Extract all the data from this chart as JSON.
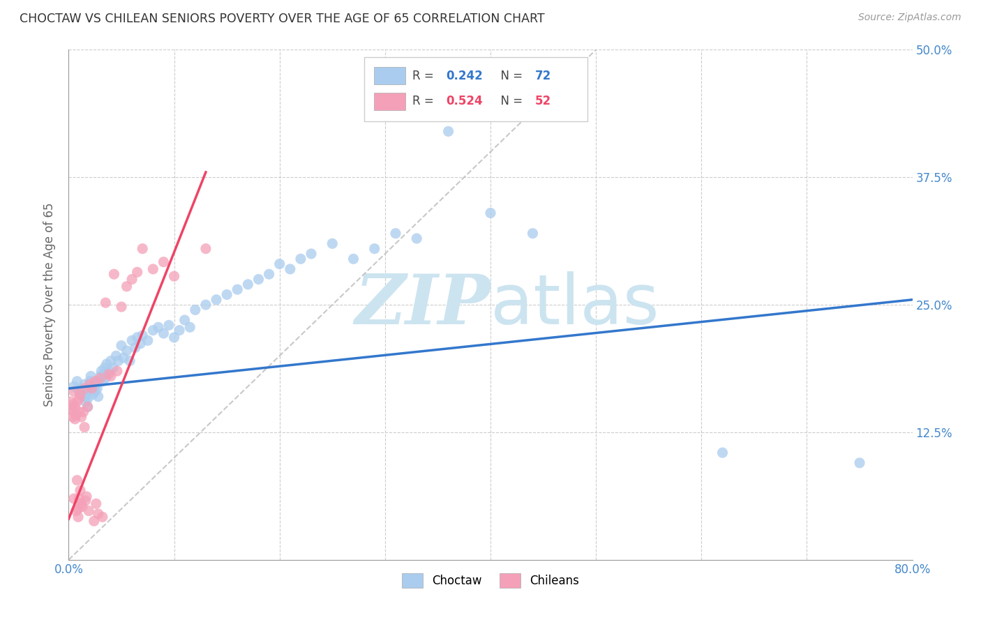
{
  "title": "CHOCTAW VS CHILEAN SENIORS POVERTY OVER THE AGE OF 65 CORRELATION CHART",
  "source": "Source: ZipAtlas.com",
  "ylabel": "Seniors Poverty Over the Age of 65",
  "xlim": [
    0,
    0.8
  ],
  "ylim": [
    -0.02,
    0.52
  ],
  "plot_ylim": [
    0,
    0.5
  ],
  "xticks": [
    0.0,
    0.1,
    0.2,
    0.3,
    0.4,
    0.5,
    0.6,
    0.7,
    0.8
  ],
  "xticklabels": [
    "0.0%",
    "",
    "",
    "",
    "",
    "",
    "",
    "",
    "80.0%"
  ],
  "yticks": [
    0.0,
    0.125,
    0.25,
    0.375,
    0.5
  ],
  "yticklabels": [
    "",
    "12.5%",
    "25.0%",
    "37.5%",
    "50.0%"
  ],
  "choctaw_color": "#aaccee",
  "chilean_color": "#f4a0b8",
  "choctaw_line_color": "#3377cc",
  "chilean_line_color": "#ee4466",
  "diagonal_color": "#bbbbbb",
  "watermark_zip": "ZIP",
  "watermark_atlas": "atlas",
  "watermark_color": "#cce4f0",
  "background_color": "#ffffff",
  "choctaw_x": [
    0.005,
    0.008,
    0.01,
    0.012,
    0.015,
    0.015,
    0.016,
    0.017,
    0.018,
    0.018,
    0.02,
    0.021,
    0.022,
    0.023,
    0.024,
    0.025,
    0.026,
    0.027,
    0.028,
    0.028,
    0.03,
    0.031,
    0.032,
    0.033,
    0.034,
    0.035,
    0.036,
    0.038,
    0.04,
    0.042,
    0.045,
    0.047,
    0.05,
    0.052,
    0.055,
    0.058,
    0.06,
    0.063,
    0.065,
    0.068,
    0.07,
    0.075,
    0.08,
    0.085,
    0.09,
    0.095,
    0.1,
    0.105,
    0.11,
    0.115,
    0.12,
    0.13,
    0.14,
    0.15,
    0.16,
    0.17,
    0.18,
    0.19,
    0.2,
    0.21,
    0.22,
    0.23,
    0.25,
    0.27,
    0.29,
    0.31,
    0.33,
    0.36,
    0.4,
    0.44,
    0.62,
    0.75
  ],
  "choctaw_y": [
    0.17,
    0.175,
    0.165,
    0.168,
    0.172,
    0.16,
    0.155,
    0.162,
    0.15,
    0.158,
    0.175,
    0.18,
    0.168,
    0.162,
    0.17,
    0.165,
    0.172,
    0.168,
    0.175,
    0.16,
    0.18,
    0.185,
    0.175,
    0.182,
    0.188,
    0.178,
    0.192,
    0.185,
    0.195,
    0.188,
    0.2,
    0.195,
    0.21,
    0.198,
    0.205,
    0.195,
    0.215,
    0.208,
    0.218,
    0.212,
    0.22,
    0.215,
    0.225,
    0.228,
    0.222,
    0.23,
    0.218,
    0.225,
    0.235,
    0.228,
    0.245,
    0.25,
    0.255,
    0.26,
    0.265,
    0.27,
    0.275,
    0.28,
    0.29,
    0.285,
    0.295,
    0.3,
    0.31,
    0.295,
    0.305,
    0.32,
    0.315,
    0.42,
    0.34,
    0.32,
    0.105,
    0.095
  ],
  "chilean_x": [
    0.002,
    0.003,
    0.004,
    0.004,
    0.005,
    0.005,
    0.005,
    0.006,
    0.006,
    0.007,
    0.007,
    0.008,
    0.008,
    0.009,
    0.009,
    0.01,
    0.01,
    0.01,
    0.011,
    0.011,
    0.012,
    0.012,
    0.013,
    0.014,
    0.015,
    0.015,
    0.016,
    0.017,
    0.018,
    0.019,
    0.02,
    0.022,
    0.024,
    0.025,
    0.026,
    0.028,
    0.03,
    0.032,
    0.035,
    0.038,
    0.04,
    0.043,
    0.046,
    0.05,
    0.055,
    0.06,
    0.065,
    0.07,
    0.08,
    0.09,
    0.1,
    0.13
  ],
  "chilean_y": [
    0.155,
    0.148,
    0.152,
    0.14,
    0.165,
    0.145,
    0.06,
    0.15,
    0.138,
    0.142,
    0.048,
    0.155,
    0.078,
    0.05,
    0.042,
    0.158,
    0.145,
    0.06,
    0.162,
    0.068,
    0.055,
    0.14,
    0.052,
    0.145,
    0.168,
    0.13,
    0.058,
    0.062,
    0.15,
    0.048,
    0.172,
    0.168,
    0.038,
    0.175,
    0.055,
    0.045,
    0.178,
    0.042,
    0.252,
    0.182,
    0.18,
    0.28,
    0.185,
    0.248,
    0.268,
    0.275,
    0.282,
    0.305,
    0.285,
    0.292,
    0.278,
    0.305
  ],
  "choctaw_line_x": [
    0.0,
    0.8
  ],
  "choctaw_line_y": [
    0.168,
    0.255
  ],
  "chilean_line_x": [
    0.0,
    0.13
  ],
  "chilean_line_y": [
    0.04,
    0.38
  ]
}
